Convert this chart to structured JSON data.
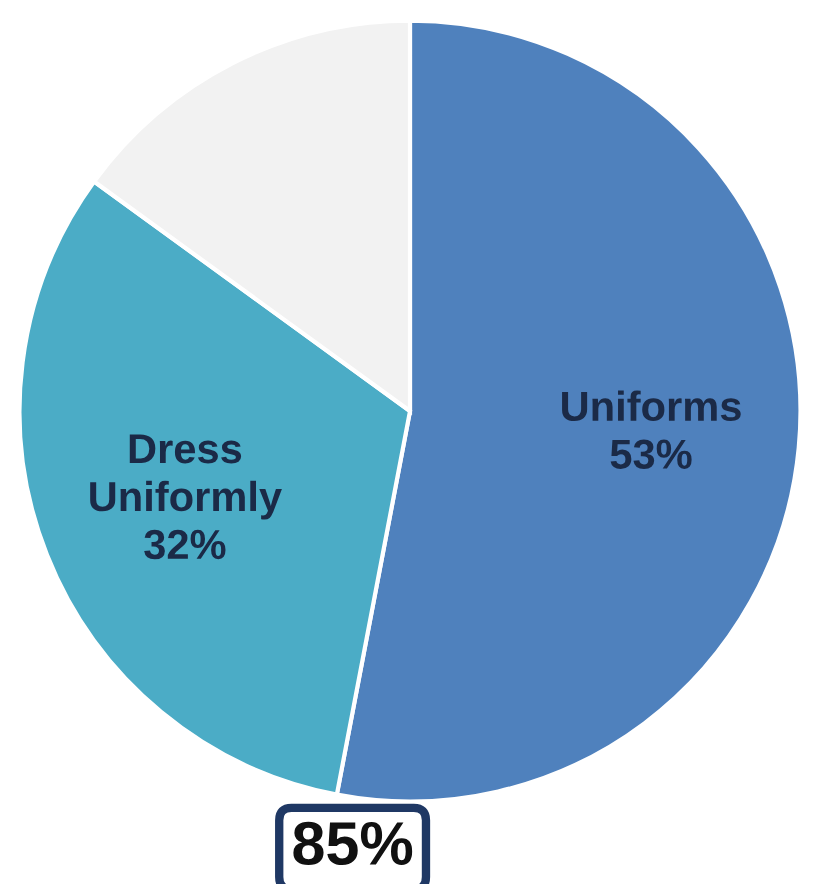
{
  "chart_data": {
    "type": "pie",
    "categories": [
      "Uniforms",
      "Dress Uniformly",
      null
    ],
    "values": [
      53,
      32,
      15
    ],
    "colors": [
      "#4f81bd",
      "#4bacc6",
      "#f2f2f2"
    ],
    "value_labels": [
      "53%",
      "32%",
      null
    ],
    "annotations": [
      "85%"
    ]
  }
}
